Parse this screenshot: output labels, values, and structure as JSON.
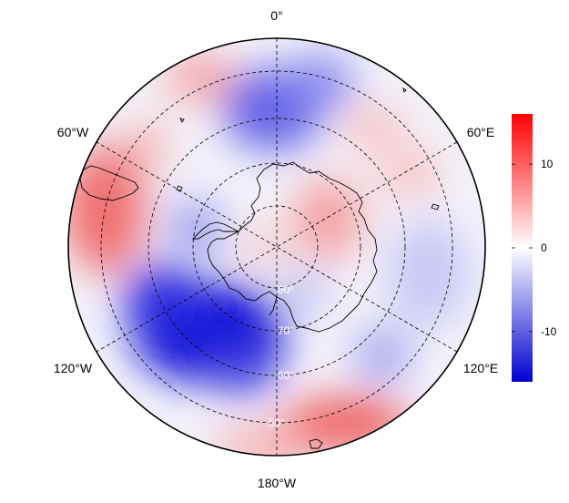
{
  "map": {
    "projection": "south-polar-stereographic",
    "longitude_labels": {
      "top": "0°",
      "upper_right": "60°E",
      "lower_right": "120°E",
      "bottom": "180°W",
      "lower_left": "120°W",
      "upper_left": "60°W"
    },
    "latitude_labels": [
      "60°",
      "70°",
      "80°",
      "50°"
    ],
    "graticule": "dashed",
    "coastlines": "Antarctica, Antarctic Peninsula, southern South America, sub-Antarctic islands"
  },
  "colorbar": {
    "tick_labels": [
      "10",
      "0",
      "-10"
    ],
    "ticks": [
      10,
      0,
      -10
    ],
    "range": [
      -16,
      16
    ],
    "colors": {
      "max": "#ff0000",
      "mid": "#ffffff",
      "min": "#0000d0"
    }
  },
  "field": {
    "anomalies": [
      {
        "region": "Amundsen/Ross Sea sector",
        "sign": "negative",
        "value": -14
      },
      {
        "region": "Drake Passage / South America",
        "sign": "positive",
        "value": 8
      },
      {
        "region": "East Antarctic plateau",
        "sign": "positive",
        "value": 4
      },
      {
        "region": "South Pacific 150°W-180°",
        "sign": "positive",
        "value": 7
      },
      {
        "region": "Weddell Sea sector",
        "sign": "negative",
        "value": -6
      }
    ]
  }
}
